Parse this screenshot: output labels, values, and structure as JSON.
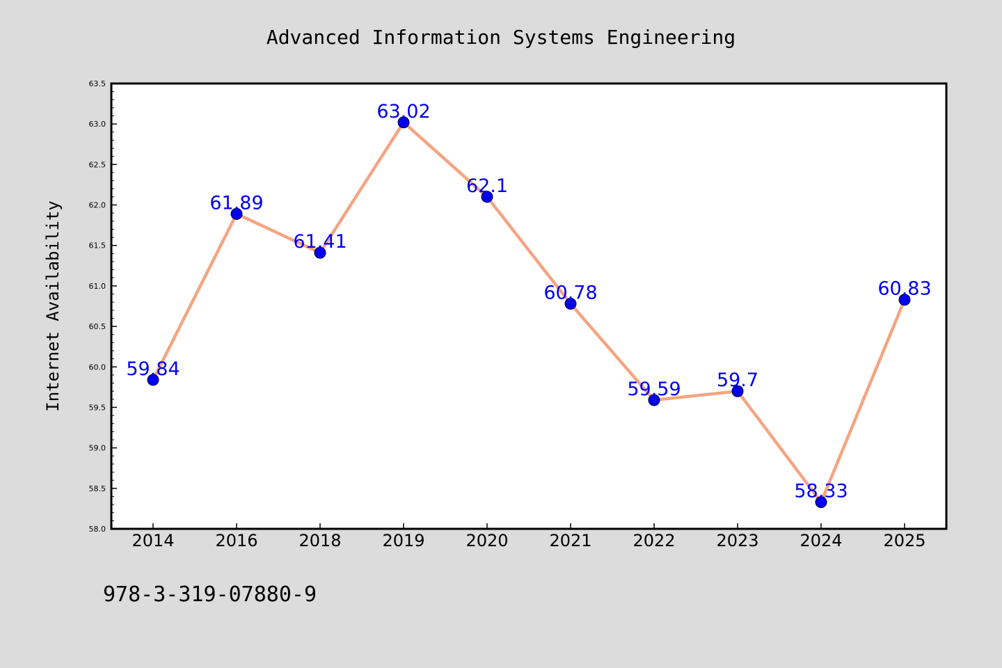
{
  "chart_data": {
    "type": "line",
    "title": "Advanced Information Systems Engineering",
    "xlabel": "",
    "ylabel": "Internet Availability",
    "categories": [
      "2014",
      "2016",
      "2018",
      "2019",
      "2020",
      "2021",
      "2022",
      "2023",
      "2024",
      "2025"
    ],
    "series": [
      {
        "values": [
          59.84,
          61.89,
          61.41,
          63.02,
          62.1,
          60.78,
          59.59,
          59.7,
          58.33,
          60.83
        ],
        "labels": [
          "59.84",
          "61.89",
          "61.41",
          "63.02",
          "62.1",
          "60.78",
          "59.59",
          "59.7",
          "58.33",
          "60.83"
        ]
      }
    ],
    "ylim": [
      58.0,
      63.5
    ],
    "yticks": [
      "58.0",
      "58.5",
      "59.0",
      "59.5",
      "60.0",
      "60.5",
      "61.0",
      "61.5",
      "62.0",
      "62.5",
      "63.0",
      "63.5"
    ],
    "grid": false,
    "legend": "none",
    "line_color": "#f4a582",
    "marker_color": "#0000ee",
    "label_color": "#0000ee",
    "footnote": "978-3-319-07880-9"
  }
}
